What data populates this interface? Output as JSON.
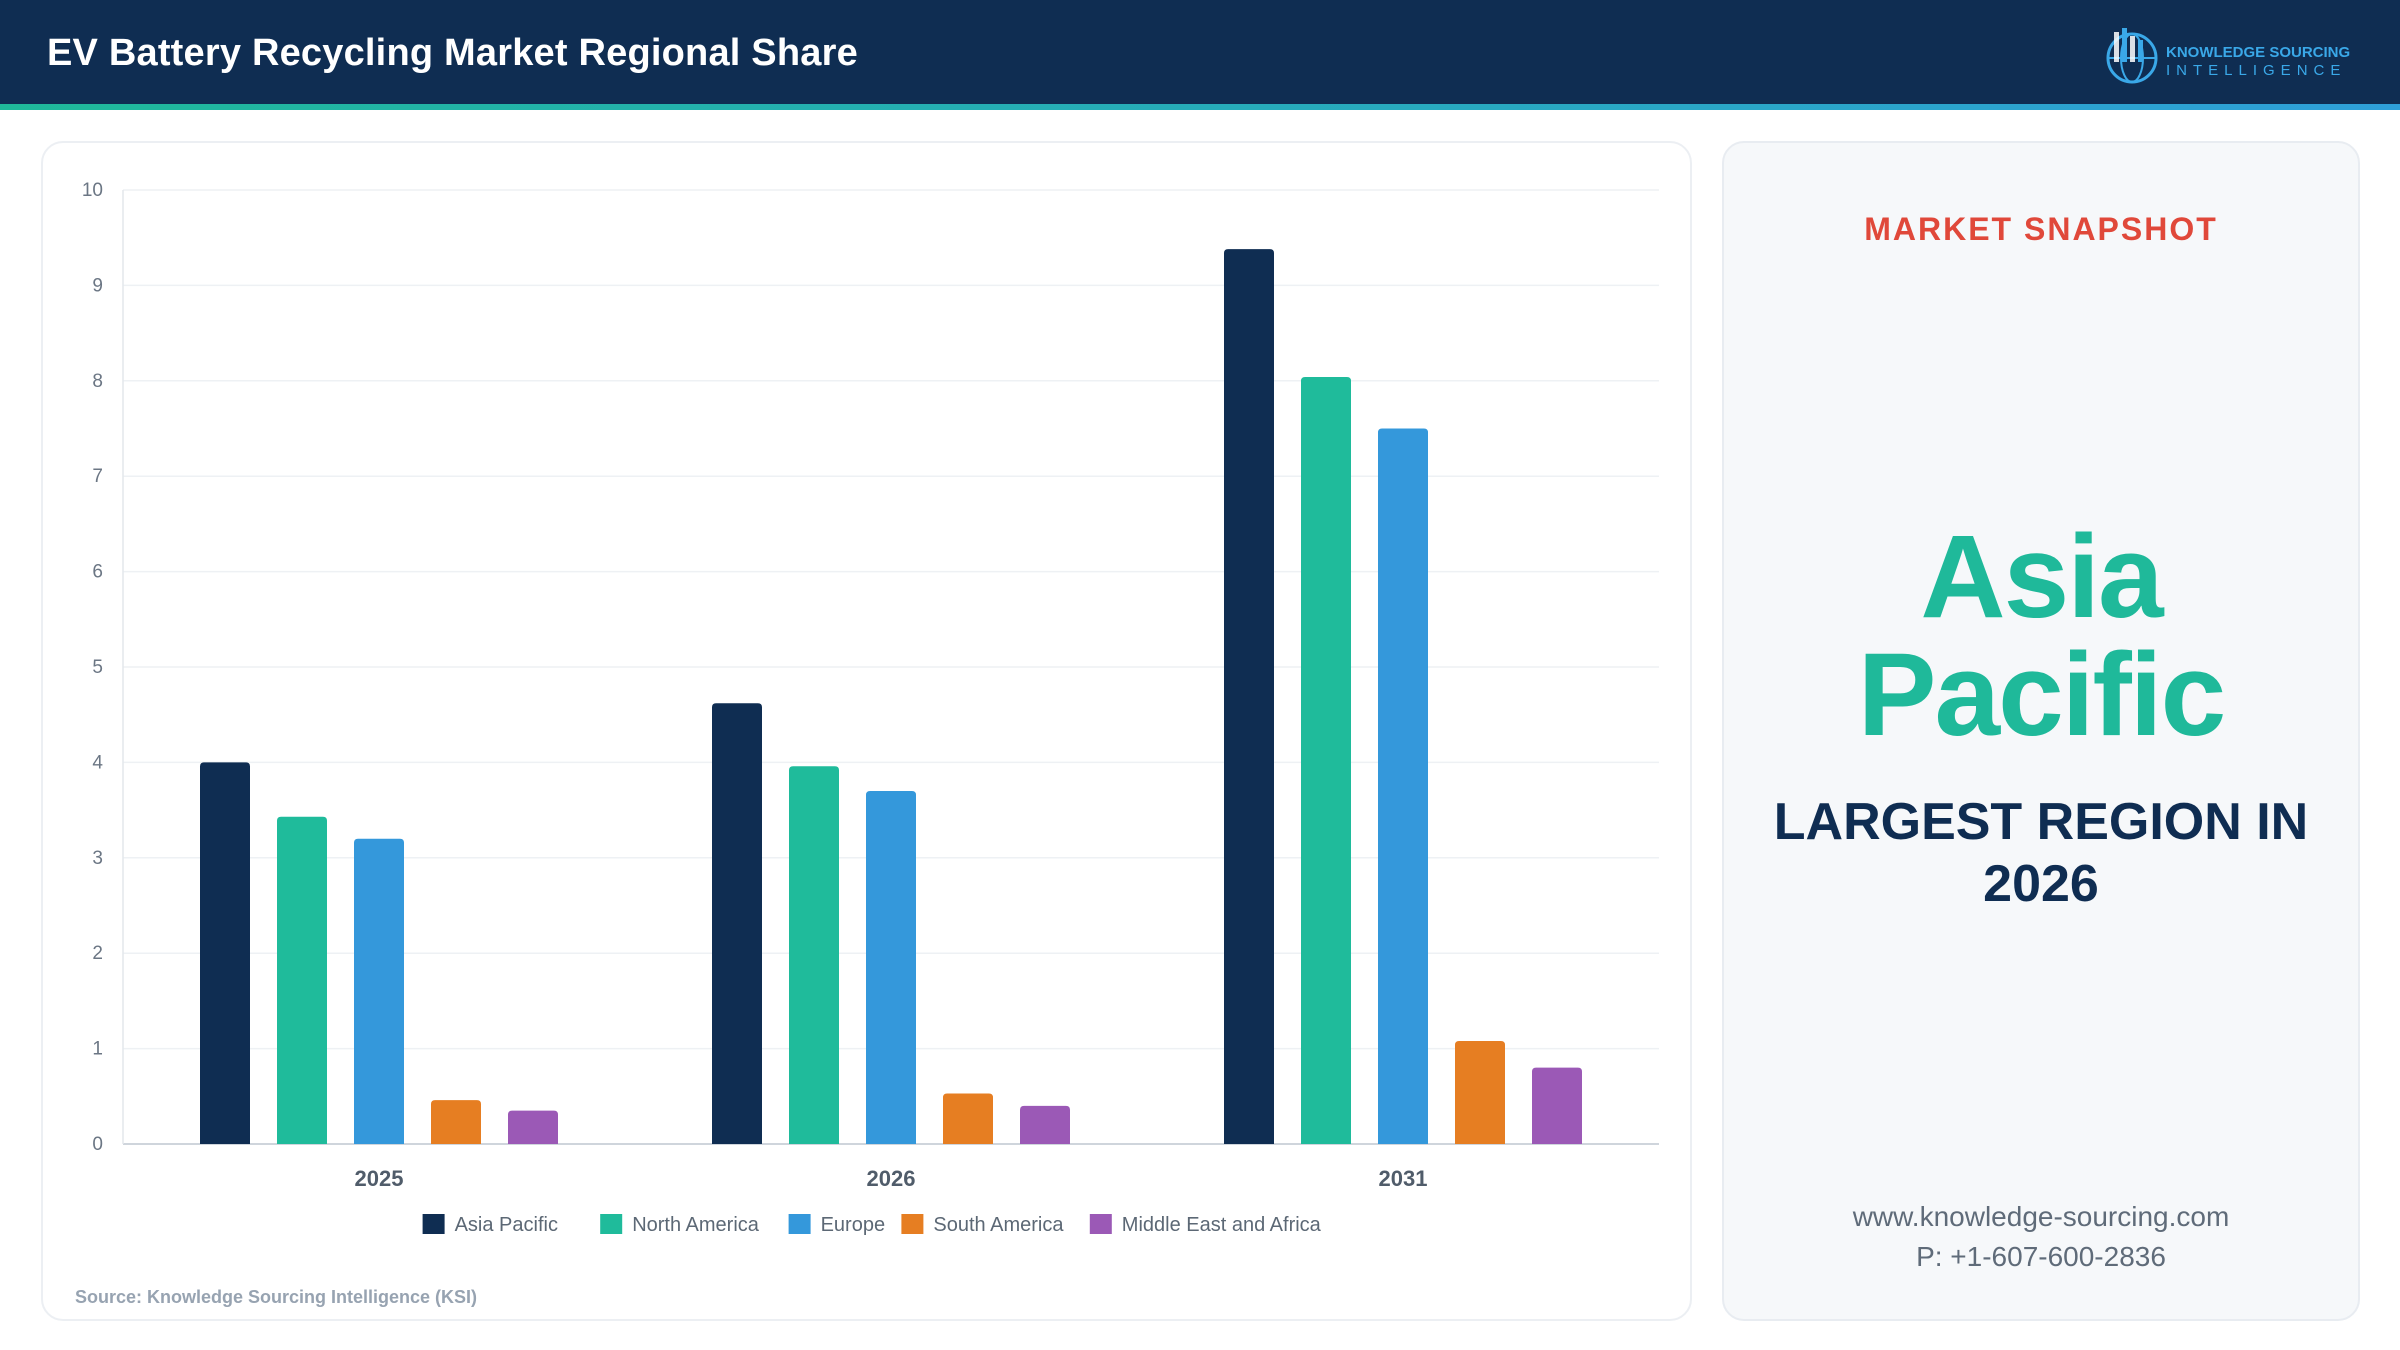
{
  "header": {
    "title": "EV Battery Recycling Market Regional Share",
    "logo_line1": "KNOWLEDGE SOURCING",
    "logo_line2": "INTELLIGENCE"
  },
  "colors": {
    "header_bg": "#0f2d52",
    "accent": "#1fb99a",
    "snapshot_label": "#e0483a"
  },
  "chart_data": {
    "type": "bar",
    "title": "",
    "xlabel": "",
    "ylabel": "",
    "ylim": [
      0,
      10
    ],
    "yticks": [
      0,
      1,
      2,
      3,
      4,
      5,
      6,
      7,
      8,
      9,
      10
    ],
    "grid": true,
    "legend_position": "bottom",
    "categories": [
      "2025",
      "2026",
      "2031"
    ],
    "series": [
      {
        "name": "Asia Pacific",
        "color": "#0f2d52",
        "values": [
          4.0,
          4.62,
          9.38
        ]
      },
      {
        "name": "North America",
        "color": "#1fbb9b",
        "values": [
          3.43,
          3.96,
          8.04
        ]
      },
      {
        "name": "Europe",
        "color": "#3498db",
        "values": [
          3.2,
          3.7,
          7.5
        ]
      },
      {
        "name": "South America",
        "color": "#e67e22",
        "values": [
          0.46,
          0.53,
          1.08
        ]
      },
      {
        "name": "Middle East and Africa",
        "color": "#9b59b6",
        "values": [
          0.35,
          0.4,
          0.8
        ]
      }
    ]
  },
  "source": "Source: Knowledge Sourcing Intelligence (KSI)",
  "snapshot": {
    "label": "MARKET SNAPSHOT",
    "region": "Asia Pacific",
    "subtitle": "LARGEST REGION IN 2026",
    "website": "www.knowledge-sourcing.com",
    "phone": "P: +1-607-600-2836"
  }
}
